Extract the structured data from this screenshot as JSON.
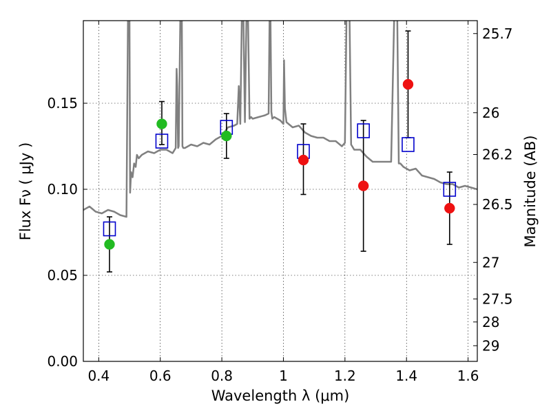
{
  "chart_data": {
    "type": "scatter",
    "xlabel": "Wavelength  λ (μm)",
    "ylabel": "Flux  Fν  ( μJy )",
    "y2label": "Magnitude (AB)",
    "xlim": [
      0.35,
      1.63
    ],
    "ylim": [
      0.0,
      0.198
    ],
    "x_ticks": [
      0.4,
      0.6,
      0.8,
      1.0,
      1.2,
      1.4,
      1.6
    ],
    "x_tick_labels": [
      "0.4",
      "0.6",
      "0.8",
      "1",
      "1.2",
      "1.4",
      "1.6"
    ],
    "y_ticks": [
      0.0,
      0.05,
      0.1,
      0.15
    ],
    "y_tick_labels": [
      "0.00",
      "0.05",
      "0.10",
      "0.15"
    ],
    "y2_ticks": [
      {
        "label": "25.7",
        "flux": 0.1905
      },
      {
        "label": "26",
        "flux": 0.1445
      },
      {
        "label": "26.2",
        "flux": 0.1202
      },
      {
        "label": "26.5",
        "flux": 0.0912
      },
      {
        "label": "27",
        "flux": 0.0575
      },
      {
        "label": "27.5",
        "flux": 0.0363
      },
      {
        "label": "28",
        "flux": 0.0229
      },
      {
        "label": "29",
        "flux": 0.0091
      }
    ],
    "grid": true,
    "series": [
      {
        "kind": "model-spectrum",
        "color": "#808080",
        "x": [
          0.35,
          0.37,
          0.39,
          0.41,
          0.43,
          0.45,
          0.47,
          0.49,
          0.495,
          0.498,
          0.5,
          0.502,
          0.505,
          0.51,
          0.515,
          0.52,
          0.524,
          0.53,
          0.54,
          0.56,
          0.58,
          0.6,
          0.62,
          0.64,
          0.65,
          0.653,
          0.655,
          0.658,
          0.66,
          0.665,
          0.668,
          0.67,
          0.672,
          0.675,
          0.68,
          0.7,
          0.72,
          0.74,
          0.76,
          0.78,
          0.8,
          0.82,
          0.84,
          0.85,
          0.855,
          0.86,
          0.865,
          0.87,
          0.875,
          0.88,
          0.885,
          0.89,
          0.895,
          0.9,
          0.92,
          0.94,
          0.952,
          0.955,
          0.958,
          0.961,
          0.964,
          0.97,
          0.99,
          1.0,
          1.002,
          1.005,
          1.01,
          1.03,
          1.05,
          1.07,
          1.09,
          1.11,
          1.13,
          1.15,
          1.17,
          1.19,
          1.2,
          1.205,
          1.21,
          1.215,
          1.22,
          1.23,
          1.25,
          1.27,
          1.29,
          1.31,
          1.33,
          1.35,
          1.36,
          1.365,
          1.37,
          1.375,
          1.38,
          1.39,
          1.41,
          1.43,
          1.45,
          1.47,
          1.49,
          1.51,
          1.53,
          1.55,
          1.57,
          1.59,
          1.61,
          1.63
        ],
        "y": [
          0.088,
          0.09,
          0.087,
          0.086,
          0.088,
          0.087,
          0.085,
          0.084,
          0.2,
          0.2,
          0.2,
          0.098,
          0.11,
          0.107,
          0.115,
          0.113,
          0.12,
          0.118,
          0.12,
          0.122,
          0.121,
          0.123,
          0.123,
          0.121,
          0.124,
          0.17,
          0.16,
          0.124,
          0.125,
          0.2,
          0.2,
          0.2,
          0.125,
          0.124,
          0.124,
          0.126,
          0.125,
          0.127,
          0.126,
          0.129,
          0.131,
          0.136,
          0.137,
          0.138,
          0.16,
          0.138,
          0.2,
          0.2,
          0.139,
          0.2,
          0.2,
          0.141,
          0.142,
          0.141,
          0.142,
          0.143,
          0.144,
          0.2,
          0.2,
          0.145,
          0.141,
          0.142,
          0.14,
          0.138,
          0.175,
          0.147,
          0.139,
          0.136,
          0.137,
          0.133,
          0.131,
          0.13,
          0.13,
          0.128,
          0.128,
          0.125,
          0.127,
          0.2,
          0.2,
          0.2,
          0.126,
          0.123,
          0.123,
          0.119,
          0.116,
          0.116,
          0.116,
          0.116,
          0.2,
          0.2,
          0.2,
          0.115,
          0.115,
          0.113,
          0.111,
          0.112,
          0.108,
          0.107,
          0.106,
          0.104,
          0.103,
          0.103,
          0.101,
          0.102,
          0.101,
          0.1
        ]
      },
      {
        "kind": "model-box",
        "marker": "square",
        "color": "#0000cc",
        "x": [
          0.435,
          0.605,
          0.815,
          1.065,
          1.26,
          1.405,
          1.54
        ],
        "y": [
          0.077,
          0.128,
          0.136,
          0.122,
          0.134,
          0.126,
          0.1
        ]
      },
      {
        "kind": "measured-green",
        "marker": "circle",
        "color": "#22bb22",
        "x": [
          0.435,
          0.605,
          0.815
        ],
        "y": [
          0.068,
          0.138,
          0.131
        ],
        "err_low": [
          0.016,
          0.012,
          0.013
        ],
        "err_high": [
          0.016,
          0.013,
          0.013
        ]
      },
      {
        "kind": "measured-red",
        "marker": "circle",
        "color": "#ee1111",
        "x": [
          1.065,
          1.26,
          1.405,
          1.54
        ],
        "y": [
          0.117,
          0.102,
          0.161,
          0.089
        ],
        "err_low": [
          0.02,
          0.038,
          0.031,
          0.021
        ],
        "err_high": [
          0.021,
          0.038,
          0.031,
          0.021
        ]
      }
    ]
  }
}
